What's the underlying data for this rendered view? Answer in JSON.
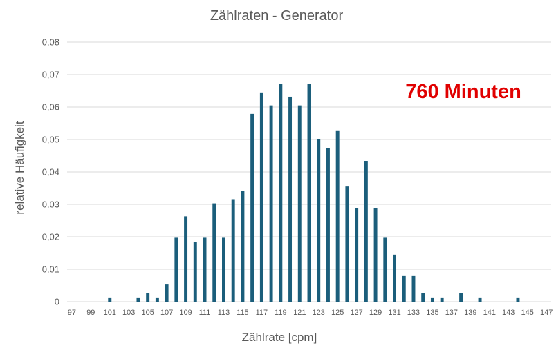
{
  "chart_data": {
    "type": "bar",
    "title": "Zählraten - Generator",
    "xlabel": "Zählrate [cpm]",
    "ylabel": "relative Häufigkeit",
    "annotation": "760 Minuten",
    "ylim": [
      0,
      0.08
    ],
    "y_ticks": [
      "0",
      "0,01",
      "0,02",
      "0,03",
      "0,04",
      "0,05",
      "0,06",
      "0,07",
      "0,08"
    ],
    "y_tick_values": [
      0,
      0.01,
      0.02,
      0.03,
      0.04,
      0.05,
      0.06,
      0.07,
      0.08
    ],
    "categories": [
      97,
      98,
      99,
      100,
      101,
      102,
      103,
      104,
      105,
      106,
      107,
      108,
      109,
      110,
      111,
      112,
      113,
      114,
      115,
      116,
      117,
      118,
      119,
      120,
      121,
      122,
      123,
      124,
      125,
      126,
      127,
      128,
      129,
      130,
      131,
      132,
      133,
      134,
      135,
      136,
      137,
      138,
      139,
      140,
      141,
      142,
      143,
      144,
      145,
      146,
      147
    ],
    "x_tick_labels": [
      "97",
      "99",
      "101",
      "103",
      "105",
      "107",
      "109",
      "111",
      "113",
      "115",
      "117",
      "119",
      "121",
      "123",
      "125",
      "127",
      "129",
      "131",
      "133",
      "135",
      "137",
      "139",
      "141",
      "143",
      "145",
      "147"
    ],
    "values": [
      0,
      0,
      0,
      0,
      0.0013,
      0,
      0,
      0.0013,
      0.0026,
      0.0013,
      0.0053,
      0.0197,
      0.0263,
      0.0184,
      0.0197,
      0.0303,
      0.0197,
      0.0316,
      0.0342,
      0.0579,
      0.0645,
      0.0605,
      0.0671,
      0.0632,
      0.0605,
      0.0671,
      0.05,
      0.0474,
      0.0526,
      0.0355,
      0.0289,
      0.0434,
      0.0289,
      0.0197,
      0.0145,
      0.0079,
      0.0079,
      0.0026,
      0.0013,
      0.0013,
      0,
      0.0026,
      0,
      0.0013,
      0,
      0,
      0,
      0.0013,
      0,
      0,
      0
    ],
    "bar_color": "#1b5e7b",
    "grid": true
  }
}
